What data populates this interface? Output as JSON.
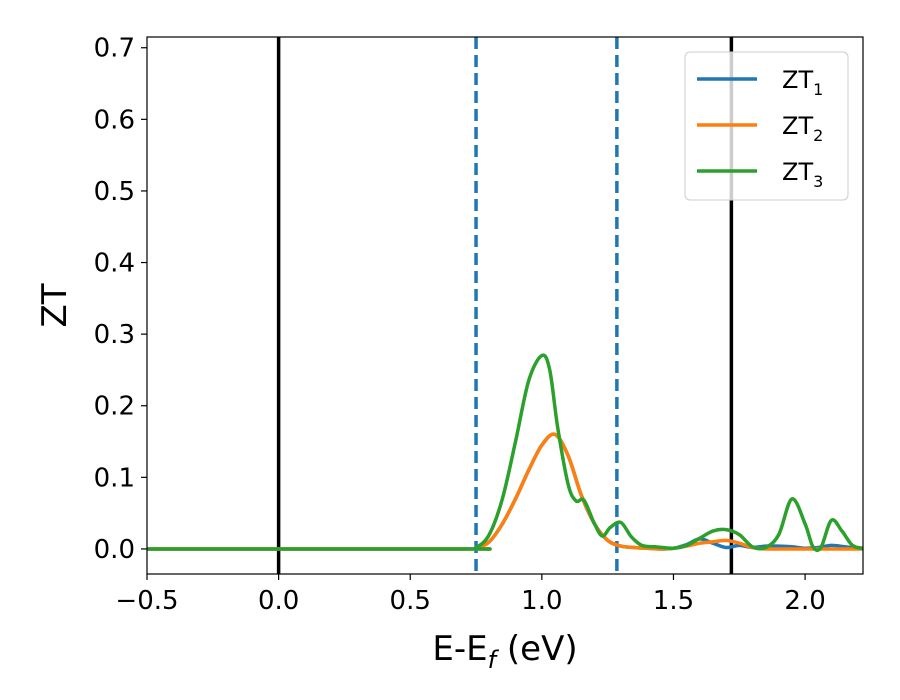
{
  "chart_data": {
    "type": "line",
    "xlabel": "E-E",
    "xlabel_sub": "f",
    "xlabel_unit": " (eV)",
    "ylabel": "ZT",
    "xlim": [
      -0.5,
      2.22
    ],
    "ylim": [
      -0.035,
      0.715
    ],
    "x_ticks": [
      -0.5,
      0.0,
      0.5,
      1.0,
      1.5,
      2.0
    ],
    "x_tick_labels": [
      "−0.5",
      "0.0",
      "0.5",
      "1.0",
      "1.5",
      "2.0"
    ],
    "y_ticks": [
      0.0,
      0.1,
      0.2,
      0.3,
      0.4,
      0.5,
      0.6,
      0.7
    ],
    "y_tick_labels": [
      "0.0",
      "0.1",
      "0.2",
      "0.3",
      "0.4",
      "0.5",
      "0.6",
      "0.7"
    ],
    "grid": false,
    "legend_position": "top-right",
    "vertical_lines": [
      {
        "x": 0.0,
        "style": "solid",
        "color": "#000000"
      },
      {
        "x": 0.75,
        "style": "dashed",
        "color": "#1f77b4"
      },
      {
        "x": 1.285,
        "style": "dashed",
        "color": "#1f77b4"
      },
      {
        "x": 1.72,
        "style": "solid",
        "color": "#000000"
      }
    ],
    "series": [
      {
        "name": "ZT",
        "name_sub": "1",
        "color": "#1f77b4",
        "x": [
          -0.5,
          0.7,
          0.75,
          0.8,
          0.85,
          0.9,
          0.95,
          1.0,
          1.05,
          1.1,
          1.15,
          1.2,
          1.25,
          1.3,
          1.35,
          1.4,
          1.45,
          1.5,
          1.55,
          1.6,
          1.65,
          1.7,
          1.75,
          1.8,
          1.85,
          1.9,
          1.95,
          2.0,
          2.05,
          2.1,
          2.15,
          2.22
        ],
        "y": [
          0.0,
          0.0,
          0.001,
          0.01,
          0.035,
          0.07,
          0.11,
          0.145,
          0.16,
          0.13,
          0.075,
          0.035,
          0.012,
          0.004,
          0.002,
          0.001,
          0.0,
          0.001,
          0.006,
          0.014,
          0.008,
          0.002,
          0.005,
          0.002,
          0.004,
          0.004,
          0.003,
          0.001,
          0.002,
          0.005,
          0.003,
          0.0
        ]
      },
      {
        "name": "ZT",
        "name_sub": "2",
        "color": "#ff7f0e",
        "x": [
          -0.5,
          0.7,
          0.75,
          0.8,
          0.85,
          0.9,
          0.95,
          1.0,
          1.05,
          1.1,
          1.15,
          1.2,
          1.25,
          1.3,
          1.35,
          1.4,
          1.45,
          1.5,
          1.55,
          1.6,
          1.65,
          1.7,
          1.75,
          1.8,
          1.85,
          1.9,
          1.95,
          2.0,
          2.05,
          2.1,
          2.15,
          2.22
        ],
        "y": [
          0.0,
          0.0,
          0.001,
          0.01,
          0.035,
          0.07,
          0.11,
          0.145,
          0.16,
          0.13,
          0.075,
          0.035,
          0.012,
          0.004,
          0.002,
          0.001,
          0.0,
          0.001,
          0.004,
          0.008,
          0.01,
          0.012,
          0.008,
          0.002,
          0.0,
          0.0,
          0.0,
          0.0,
          0.0,
          0.0,
          0.0,
          0.0
        ]
      },
      {
        "name": "ZT",
        "name_sub": "3",
        "color": "#2ca02c",
        "x": [
          -0.5,
          0.7,
          0.75,
          0.8,
          0.85,
          0.9,
          0.95,
          1.0,
          1.03,
          1.06,
          1.1,
          1.13,
          1.16,
          1.2,
          1.23,
          1.26,
          1.3,
          1.34,
          1.38,
          1.43,
          1.5,
          1.55,
          1.6,
          1.65,
          1.7,
          1.75,
          1.8,
          1.85,
          1.9,
          1.95,
          2.0,
          2.03,
          2.06,
          2.1,
          2.14,
          2.18,
          2.22
        ],
        "y": [
          0.0,
          0.0,
          0.002,
          0.02,
          0.07,
          0.15,
          0.235,
          0.27,
          0.25,
          0.17,
          0.09,
          0.067,
          0.068,
          0.035,
          0.018,
          0.03,
          0.037,
          0.017,
          0.005,
          0.003,
          0.001,
          0.005,
          0.015,
          0.025,
          0.027,
          0.02,
          0.003,
          0.002,
          0.02,
          0.07,
          0.035,
          0.003,
          0.002,
          0.04,
          0.025,
          0.005,
          0.001
        ]
      }
    ]
  }
}
